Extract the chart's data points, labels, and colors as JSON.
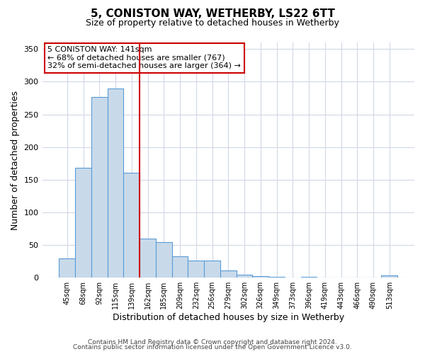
{
  "title": "5, CONISTON WAY, WETHERBY, LS22 6TT",
  "subtitle": "Size of property relative to detached houses in Wetherby",
  "xlabel": "Distribution of detached houses by size in Wetherby",
  "ylabel": "Number of detached properties",
  "bar_labels": [
    "45sqm",
    "68sqm",
    "92sqm",
    "115sqm",
    "139sqm",
    "162sqm",
    "185sqm",
    "209sqm",
    "232sqm",
    "256sqm",
    "279sqm",
    "302sqm",
    "326sqm",
    "349sqm",
    "373sqm",
    "396sqm",
    "419sqm",
    "443sqm",
    "466sqm",
    "490sqm",
    "513sqm"
  ],
  "bar_values": [
    29,
    168,
    277,
    290,
    161,
    60,
    54,
    33,
    26,
    26,
    11,
    5,
    2,
    1,
    0,
    1,
    0,
    0,
    0,
    0,
    3
  ],
  "bar_color": "#c8daea",
  "bar_edge_color": "#5b9bd5",
  "vline_x_index": 4,
  "vline_color": "#cc0000",
  "annotation_line1": "5 CONISTON WAY: 141sqm",
  "annotation_line2": "← 68% of detached houses are smaller (767)",
  "annotation_line3": "32% of semi-detached houses are larger (364) →",
  "annotation_box_edge_color": "#cc0000",
  "annotation_box_facecolor": "white",
  "ylim": [
    0,
    360
  ],
  "yticks": [
    0,
    50,
    100,
    150,
    200,
    250,
    300,
    350
  ],
  "footer_line1": "Contains HM Land Registry data © Crown copyright and database right 2024.",
  "footer_line2": "Contains public sector information licensed under the Open Government Licence v3.0.",
  "background_color": "white",
  "grid_color": "#d0d8e4"
}
